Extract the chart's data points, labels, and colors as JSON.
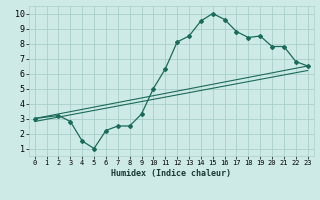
{
  "xlabel": "Humidex (Indice chaleur)",
  "background_color": "#ceeae6",
  "grid_color": "#aacfcb",
  "line_color": "#1a6b5a",
  "xlim": [
    -0.5,
    23.5
  ],
  "ylim": [
    0.5,
    10.5
  ],
  "xticks": [
    0,
    1,
    2,
    3,
    4,
    5,
    6,
    7,
    8,
    9,
    10,
    11,
    12,
    13,
    14,
    15,
    16,
    17,
    18,
    19,
    20,
    21,
    22,
    23
  ],
  "yticks": [
    1,
    2,
    3,
    4,
    5,
    6,
    7,
    8,
    9,
    10
  ],
  "line1_x": [
    0,
    2,
    3,
    4,
    5,
    6,
    7,
    8,
    9,
    10,
    11,
    12,
    13,
    14,
    15,
    16,
    17,
    18,
    19,
    20,
    21,
    22,
    23
  ],
  "line1_y": [
    3.0,
    3.2,
    2.8,
    1.5,
    1.0,
    2.2,
    2.5,
    2.5,
    3.3,
    5.0,
    6.3,
    8.1,
    8.5,
    9.5,
    10.0,
    9.6,
    8.8,
    8.4,
    8.5,
    7.8,
    7.8,
    6.8,
    6.5
  ],
  "line2_x": [
    0,
    23
  ],
  "line2_y": [
    3.0,
    6.5
  ],
  "line3_x": [
    0,
    23
  ],
  "line3_y": [
    2.8,
    6.2
  ],
  "xlabel_fontsize": 6,
  "tick_fontsize_x": 5,
  "tick_fontsize_y": 6
}
